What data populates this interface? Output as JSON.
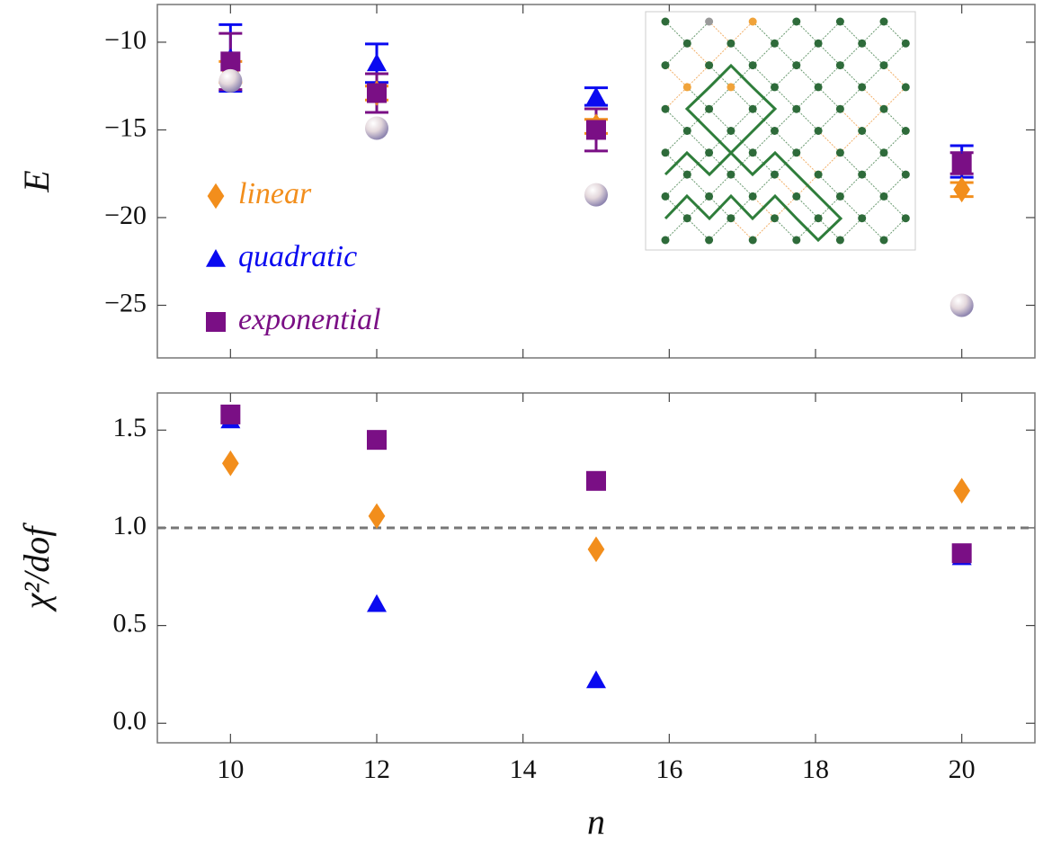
{
  "chart_data": [
    {
      "type": "scatter",
      "y_label": "E",
      "x": [
        10,
        12,
        15,
        20
      ],
      "xlim": [
        9,
        21
      ],
      "xticks": [
        10,
        12,
        14,
        16,
        18,
        20
      ],
      "xtick_labels": false,
      "ylim": [
        -28,
        -7.85
      ],
      "yticks": [
        {
          "value": -25,
          "label": "−25"
        },
        {
          "value": -20,
          "label": "−20"
        },
        {
          "value": -15,
          "label": "−15"
        },
        {
          "value": -10,
          "label": "−10"
        }
      ],
      "legend": "left",
      "series": [
        {
          "name": "linear",
          "color": "#f28e1c",
          "marker": "diamond",
          "values": [
            -11.7,
            -12.9,
            -14.8,
            -18.4
          ],
          "errors": [
            0.6,
            0.4,
            0.4,
            0.4
          ]
        },
        {
          "name": "quadratic",
          "color": "#0a0af0",
          "marker": "triangle",
          "values": [
            -10.9,
            -11.2,
            -13.1,
            -16.8
          ],
          "errors": [
            1.9,
            1.1,
            0.5,
            0.9
          ]
        },
        {
          "name": "exponential",
          "color": "#7a0f85",
          "marker": "square",
          "values": [
            -11.1,
            -12.9,
            -15.0,
            -16.9
          ],
          "errors": [
            1.6,
            1.1,
            1.2,
            0.6
          ]
        },
        {
          "color": "#c9b8c8",
          "marker": "sphere",
          "values": [
            -12.2,
            -14.9,
            -18.7,
            -25.0
          ]
        }
      ]
    },
    {
      "type": "scatter",
      "y_label": "χ²/dof",
      "x_label": "n",
      "x": [
        10,
        12,
        15,
        20
      ],
      "xlim": [
        9,
        21
      ],
      "xticks": [
        10,
        12,
        14,
        16,
        18,
        20
      ],
      "xtick_labels": true,
      "ylim": [
        -0.1,
        1.69
      ],
      "yticks": [
        {
          "value": 0,
          "label": "0.0"
        },
        0.5,
        {
          "value": 1,
          "label": "1.0"
        },
        1.5
      ],
      "hline": 1,
      "series": [
        {
          "name": "linear",
          "color": "#f28e1c",
          "marker": "diamond",
          "values": [
            1.33,
            1.06,
            0.89,
            1.19
          ]
        },
        {
          "name": "quadratic",
          "color": "#0a0af0",
          "marker": "triangle",
          "values": [
            1.55,
            0.61,
            0.22,
            0.85
          ]
        },
        {
          "name": "exponential",
          "color": "#7a0f85",
          "marker": "square",
          "values": [
            1.58,
            1.45,
            1.24,
            0.87
          ]
        }
      ]
    }
  ]
}
